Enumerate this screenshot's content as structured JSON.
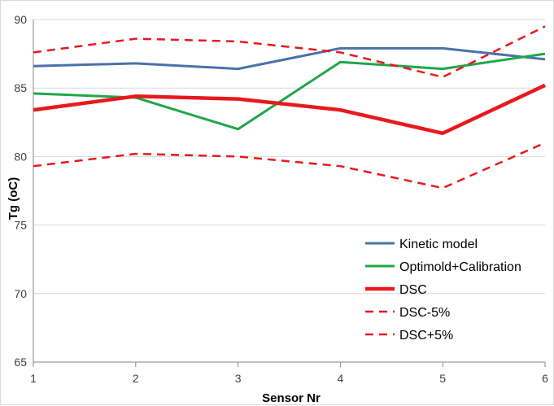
{
  "chart_data": {
    "type": "line",
    "title": "",
    "xlabel": "Sensor Nr",
    "ylabel": "Tg (oC)",
    "x": [
      1,
      2,
      3,
      4,
      5,
      6
    ],
    "xlim": [
      1,
      6
    ],
    "ylim": [
      65,
      90
    ],
    "yticks": [
      65,
      70,
      75,
      80,
      85,
      90
    ],
    "grid": "horizontal",
    "legend_position": "bottom-right",
    "series": [
      {
        "name": "Kinetic model",
        "values": [
          86.6,
          86.8,
          86.4,
          87.9,
          87.9,
          87.1
        ],
        "color": "#4a72a8",
        "style": "solid",
        "width": 3
      },
      {
        "name": "Optimold+Calibration",
        "values": [
          84.6,
          84.3,
          82.0,
          86.9,
          86.4,
          87.5
        ],
        "color": "#21a64a",
        "style": "solid",
        "width": 3
      },
      {
        "name": "DSC",
        "values": [
          83.4,
          84.4,
          84.2,
          83.4,
          81.7,
          85.2
        ],
        "color": "#e8191c",
        "style": "solid",
        "width": 4.5
      },
      {
        "name": "DSC-5%",
        "values": [
          79.3,
          80.2,
          80.0,
          79.3,
          77.7,
          81.0
        ],
        "color": "#e8191c",
        "style": "dashed",
        "width": 2.5
      },
      {
        "name": "DSC+5%",
        "values": [
          87.6,
          88.6,
          88.4,
          87.6,
          85.8,
          89.5
        ],
        "color": "#e8191c",
        "style": "dashed",
        "width": 2.5
      }
    ]
  }
}
